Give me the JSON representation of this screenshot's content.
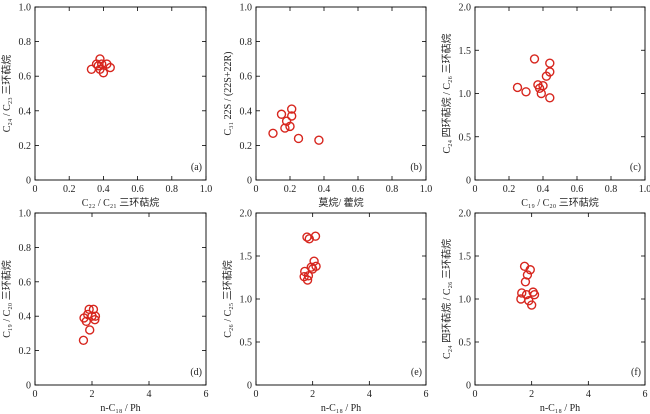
{
  "chart_data": [
    {
      "id": "a",
      "type": "scatter",
      "panel_label": "(a)",
      "xlabel": "C₂₂ / C₂₁ 三环萜烷",
      "ylabel": "C₂₄ / C₂₃ 三环萜烷",
      "xlim": [
        0,
        1.0
      ],
      "ylim": [
        0,
        1.0
      ],
      "xticks": [
        "0",
        "0.2",
        "0.4",
        "0.6",
        "0.8",
        "1.0"
      ],
      "yticks": [
        "0",
        "0.2",
        "0.4",
        "0.6",
        "0.8",
        "1.0"
      ],
      "x": [
        0.33,
        0.36,
        0.37,
        0.38,
        0.38,
        0.39,
        0.4,
        0.42,
        0.44
      ],
      "y": [
        0.64,
        0.67,
        0.66,
        0.64,
        0.7,
        0.67,
        0.62,
        0.67,
        0.65
      ]
    },
    {
      "id": "b",
      "type": "scatter",
      "panel_label": "(b)",
      "xlabel": "莫烷/ 藿烷",
      "ylabel": "C₃₁ 22S / (22S+22R)",
      "xlim": [
        0,
        1.0
      ],
      "ylim": [
        0,
        1.0
      ],
      "xticks": [
        "0",
        "0.2",
        "0.4",
        "0.6",
        "0.8",
        "1.0"
      ],
      "yticks": [
        "0",
        "0.2",
        "0.4",
        "0.6",
        "0.8",
        "1.0"
      ],
      "x": [
        0.1,
        0.15,
        0.17,
        0.18,
        0.2,
        0.21,
        0.21,
        0.25,
        0.37
      ],
      "y": [
        0.27,
        0.38,
        0.3,
        0.34,
        0.31,
        0.37,
        0.41,
        0.24,
        0.23
      ]
    },
    {
      "id": "c",
      "type": "scatter",
      "panel_label": "(c)",
      "xlabel": "C₁₉ / C₂₀ 三环萜烷",
      "ylabel": "C₂₄ 四环萜烷 / C₂₆ 三环萜烷",
      "xlim": [
        0,
        1.0
      ],
      "ylim": [
        0,
        2.0
      ],
      "xticks": [
        "0",
        "0.2",
        "0.4",
        "0.6",
        "0.8",
        "1.0"
      ],
      "yticks": [
        "0",
        "0.5",
        "1.0",
        "1.5",
        "2.0"
      ],
      "x": [
        0.25,
        0.3,
        0.35,
        0.37,
        0.38,
        0.39,
        0.4,
        0.42,
        0.44,
        0.44,
        0.44
      ],
      "y": [
        1.07,
        1.02,
        1.4,
        1.1,
        1.06,
        1.0,
        1.09,
        1.2,
        0.95,
        1.25,
        1.35
      ]
    },
    {
      "id": "d",
      "type": "scatter",
      "panel_label": "(d)",
      "xlabel": "n-C₁₈ / Ph",
      "ylabel": "C₁₉ / C₂₀ 三环萜烷",
      "xlim": [
        0,
        6
      ],
      "ylim": [
        0,
        1.0
      ],
      "xticks": [
        "0",
        "2",
        "4",
        "6"
      ],
      "yticks": [
        "0",
        "0.2",
        "0.4",
        "0.6",
        "0.8",
        "1.0"
      ],
      "x": [
        1.7,
        1.72,
        1.8,
        1.85,
        1.9,
        1.92,
        2.0,
        2.05,
        2.1,
        2.12
      ],
      "y": [
        0.26,
        0.39,
        0.37,
        0.41,
        0.44,
        0.32,
        0.4,
        0.44,
        0.38,
        0.4
      ]
    },
    {
      "id": "e",
      "type": "scatter",
      "panel_label": "(e)",
      "xlabel": "n-C₁₈ / Ph",
      "ylabel": "C₂₆ / C₂₅ 三环萜烷",
      "xlim": [
        0,
        6
      ],
      "ylim": [
        0,
        2.0
      ],
      "xticks": [
        "0",
        "2",
        "4",
        "6"
      ],
      "yticks": [
        "0",
        "0.5",
        "1.0",
        "1.5",
        "2.0"
      ],
      "x": [
        1.7,
        1.72,
        1.8,
        1.82,
        1.85,
        1.88,
        1.95,
        2.0,
        2.05,
        2.1,
        2.12
      ],
      "y": [
        1.26,
        1.32,
        1.72,
        1.22,
        1.27,
        1.7,
        1.37,
        1.35,
        1.44,
        1.73,
        1.38
      ]
    },
    {
      "id": "f",
      "type": "scatter",
      "panel_label": "(f)",
      "xlabel": "n-C₁₈ / Ph",
      "ylabel": "C₂₄ 四环萜烷 / C₂₆ 三环萜烷",
      "xlim": [
        0,
        6
      ],
      "ylim": [
        0,
        2.0
      ],
      "xticks": [
        "0",
        "2",
        "4",
        "6"
      ],
      "yticks": [
        "0",
        "0.5",
        "1.0",
        "1.5",
        "2.0"
      ],
      "x": [
        1.62,
        1.65,
        1.75,
        1.78,
        1.82,
        1.85,
        1.9,
        1.95,
        2.0,
        2.05,
        2.1
      ],
      "y": [
        1.0,
        1.07,
        1.38,
        1.2,
        1.05,
        1.28,
        0.98,
        1.34,
        0.93,
        1.08,
        1.05
      ]
    }
  ]
}
